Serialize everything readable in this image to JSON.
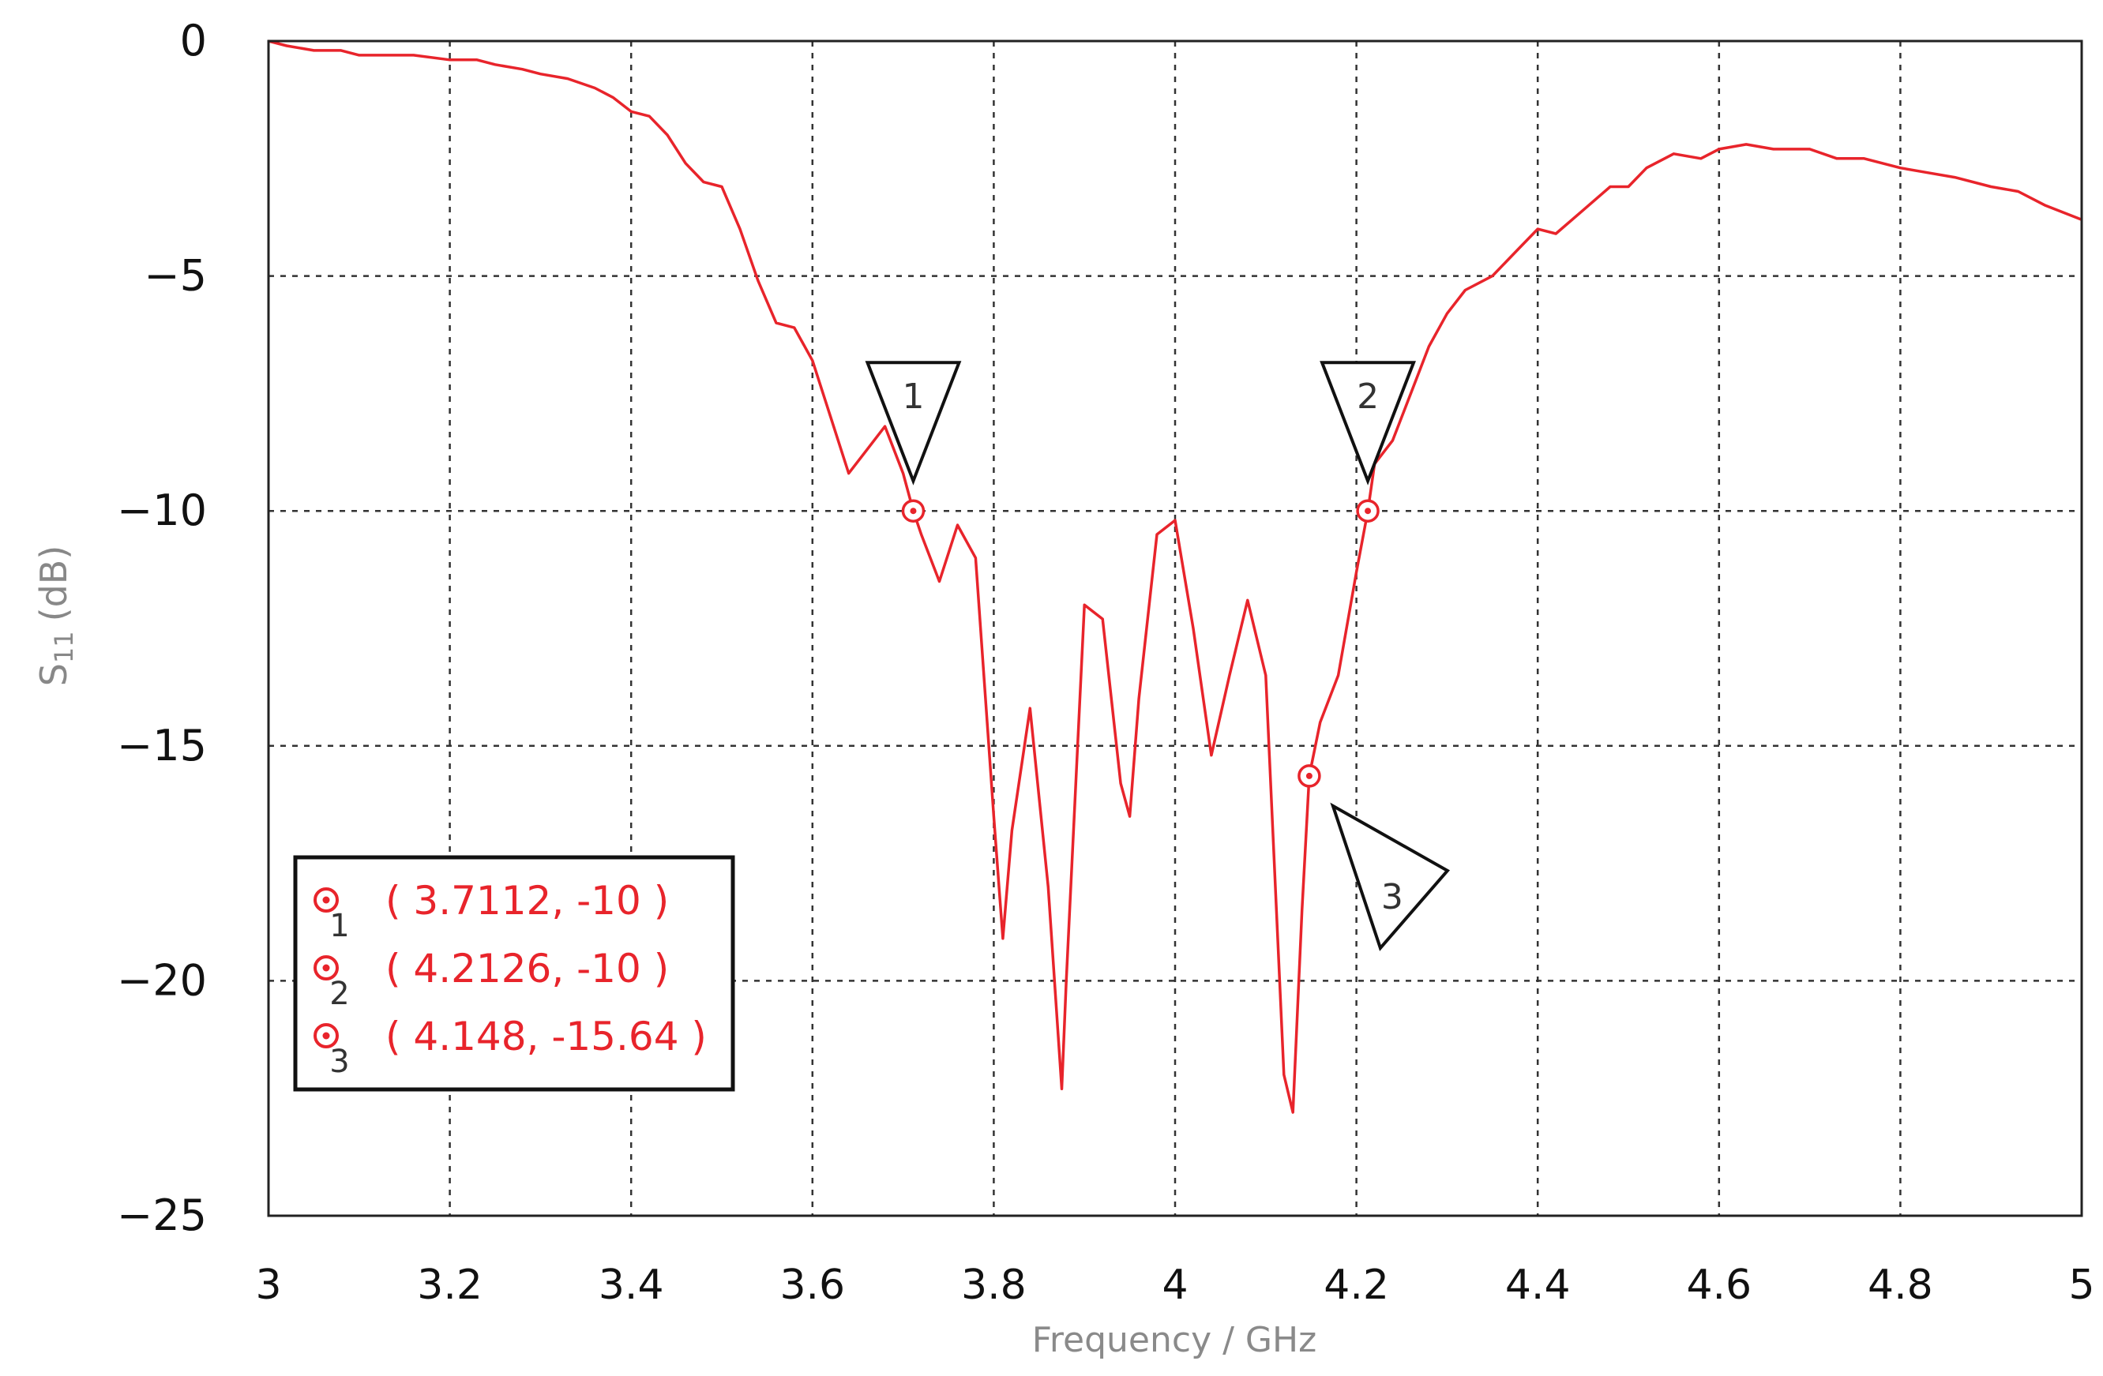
{
  "chart_data": {
    "type": "line",
    "xlabel": "Frequency / GHz",
    "ylabel": "S11 (dB)",
    "ylabel_main": "S",
    "ylabel_sub": "11",
    "ylabel_unit": "(dB)",
    "xlim": [
      3,
      5
    ],
    "ylim": [
      -25,
      0
    ],
    "x_ticks": [
      "3",
      "3.2",
      "3.4",
      "3.6",
      "3.8",
      "4",
      "4.2",
      "4.4",
      "4.6",
      "4.8",
      "5"
    ],
    "y_ticks": [
      "0",
      "−5",
      "−10",
      "−15",
      "−20",
      "−25"
    ],
    "grid": true,
    "line_color": "#e8242b",
    "series": [
      {
        "x": [
          3.0,
          3.02,
          3.05,
          3.08,
          3.1,
          3.13,
          3.16,
          3.2,
          3.23,
          3.25,
          3.28,
          3.3,
          3.33,
          3.36,
          3.38,
          3.4,
          3.42,
          3.44,
          3.46,
          3.48,
          3.5,
          3.52,
          3.54,
          3.56,
          3.58,
          3.6,
          3.62,
          3.64,
          3.66,
          3.68,
          3.7,
          3.7112,
          3.72,
          3.74,
          3.76,
          3.78,
          3.8,
          3.81,
          3.82,
          3.84,
          3.86,
          3.875,
          3.88,
          3.9,
          3.92,
          3.94,
          3.95,
          3.96,
          3.98,
          4.0,
          4.02,
          4.04,
          4.06,
          4.08,
          4.1,
          4.12,
          4.13,
          4.14,
          4.148,
          4.16,
          4.18,
          4.2,
          4.2126,
          4.22,
          4.24,
          4.26,
          4.28,
          4.3,
          4.32,
          4.35,
          4.38,
          4.4,
          4.42,
          4.45,
          4.48,
          4.5,
          4.52,
          4.55,
          4.58,
          4.6,
          4.63,
          4.66,
          4.7,
          4.73,
          4.76,
          4.8,
          4.83,
          4.86,
          4.9,
          4.93,
          4.96,
          5.0
        ],
        "y": [
          0,
          -0.1,
          -0.2,
          -0.2,
          -0.3,
          -0.3,
          -0.3,
          -0.4,
          -0.4,
          -0.5,
          -0.6,
          -0.7,
          -0.8,
          -1.0,
          -1.2,
          -1.5,
          -1.6,
          -2.0,
          -2.6,
          -3.0,
          -3.1,
          -4.0,
          -5.1,
          -6.0,
          -6.1,
          -6.8,
          -8.0,
          -9.2,
          -8.7,
          -8.2,
          -9.2,
          -10.0,
          -10.5,
          -11.5,
          -10.3,
          -11.0,
          -16.5,
          -19.1,
          -16.8,
          -14.2,
          -18.0,
          -22.3,
          -20.0,
          -12.0,
          -12.3,
          -15.8,
          -16.5,
          -14.0,
          -10.5,
          -10.2,
          -12.5,
          -15.2,
          -13.5,
          -11.9,
          -13.5,
          -22.0,
          -22.8,
          -18.5,
          -15.64,
          -14.5,
          -13.5,
          -11.3,
          -10.0,
          -9.0,
          -8.5,
          -7.5,
          -6.5,
          -5.8,
          -5.3,
          -5.0,
          -4.4,
          -4.0,
          -4.1,
          -3.6,
          -3.1,
          -3.1,
          -2.7,
          -2.4,
          -2.5,
          -2.3,
          -2.2,
          -2.3,
          -2.3,
          -2.5,
          -2.5,
          -2.7,
          -2.8,
          -2.9,
          -3.1,
          -3.2,
          -3.5,
          -3.8
        ]
      }
    ],
    "markers": [
      {
        "label": "1",
        "x": 3.7112,
        "y": -10,
        "pointer": "down",
        "text": "( 3.7112, -10 )"
      },
      {
        "label": "2",
        "x": 4.2126,
        "y": -10,
        "pointer": "down",
        "text": "( 4.2126, -10 )"
      },
      {
        "label": "3",
        "x": 4.148,
        "y": -15.64,
        "pointer": "left",
        "text": "( 4.148, -15.64 )"
      }
    ]
  }
}
